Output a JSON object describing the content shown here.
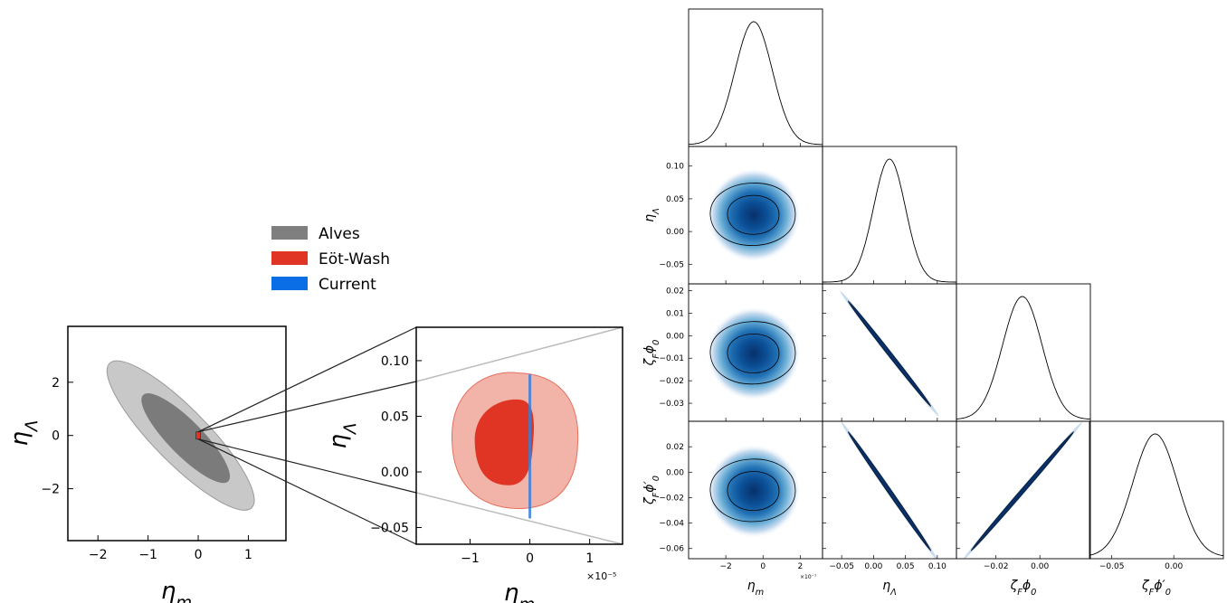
{
  "chart_data": [
    {
      "type": "contour",
      "panel": "main",
      "xlabel": "ηm",
      "ylabel": "ηΛ",
      "xlim": [
        -2.6,
        1.75
      ],
      "ylim": [
        -3.95,
        4.1
      ],
      "xticks": [
        -2,
        -1,
        0,
        1
      ],
      "yticks": [
        -2,
        0,
        2
      ],
      "xtick_labels": [
        "−2",
        "−1",
        "0",
        "1"
      ],
      "ytick_labels": [
        "−2",
        "0",
        "2"
      ],
      "contours": [
        {
          "name": "Alves",
          "level": "outer",
          "color": "#c8c8c8",
          "center": [
            -0.4,
            0.4
          ],
          "extent_x": [
            -1.5,
            1.3
          ],
          "extent_y": [
            -2.7,
            2.6
          ]
        },
        {
          "name": "Alves",
          "level": "inner",
          "color": "#7b7b7b",
          "center": [
            -0.3,
            0.3
          ],
          "extent_x": [
            -0.9,
            0.8
          ],
          "extent_y": [
            -1.7,
            1.5
          ]
        }
      ]
    },
    {
      "type": "contour",
      "panel": "zoom",
      "xlabel": "ηm",
      "ylabel": "ηΛ",
      "x_scale_label": "×10⁻⁵",
      "xlim": [
        -1.9,
        1.55
      ],
      "ylim": [
        -0.065,
        0.13
      ],
      "xticks": [
        -1,
        0,
        1
      ],
      "yticks": [
        -0.05,
        0.0,
        0.05,
        0.1
      ],
      "xtick_labels": [
        "−1",
        "0",
        "1"
      ],
      "ytick_labels": [
        "−0.05",
        "0.00",
        "0.05",
        "0.10"
      ],
      "contours": [
        {
          "name": "Eöt-Wash",
          "level": "outer",
          "color": "#f2b3a8",
          "extent_x": [
            -1.35,
            0.8
          ],
          "extent_y": [
            -0.03,
            0.09
          ]
        },
        {
          "name": "Eöt-Wash",
          "level": "inner",
          "color": "#e03424",
          "extent_x": [
            -0.9,
            0.0
          ],
          "extent_y": [
            -0.012,
            0.065
          ]
        },
        {
          "name": "Current",
          "level": "band",
          "color": "#3a7fd8",
          "x": 0.0,
          "extent_y": [
            -0.042,
            0.088
          ]
        }
      ]
    },
    {
      "type": "corner",
      "parameters": [
        "ηm",
        "ηΛ",
        "ζFϕ0",
        "ζFϕ′0"
      ],
      "offset_label": "×10⁻⁷",
      "means": [
        -0.5,
        0.025,
        -0.008,
        -0.015
      ],
      "sigmas": [
        1.0,
        0.025,
        0.009,
        0.018
      ],
      "correlations": [
        [
          "eta_Lambda",
          "zetaF_phi0",
          -0.998
        ],
        [
          "eta_Lambda",
          "zetaF_phi0prime",
          -0.998
        ],
        [
          "zetaF_phi0",
          "zetaF_phi0prime",
          0.998
        ]
      ],
      "axes": {
        "eta_m": {
          "label": "ηm",
          "lim": [
            -4.0,
            3.2
          ],
          "ticks": [
            -2,
            0,
            2
          ],
          "tick_labels": [
            "−2",
            "0",
            "2"
          ]
        },
        "eta_Lambda": {
          "label": "ηΛ",
          "lim": [
            -0.08,
            0.13
          ],
          "ticks": [
            -0.05,
            0.0,
            0.05,
            0.1
          ],
          "tick_labels": [
            "−0.05",
            "0.00",
            "0.05",
            "0.10"
          ]
        },
        "zetaF_phi0": {
          "label": "ζFϕ0",
          "lim": [
            -0.038,
            0.023
          ],
          "ticks": [
            -0.03,
            -0.02,
            -0.01,
            0.0,
            0.01,
            0.02
          ],
          "tick_labels": [
            "−0.03",
            "−0.02",
            "−0.01",
            "0.00",
            "0.01",
            "0.02"
          ],
          "xticks": [
            -0.02,
            0.0
          ],
          "xtick_labels": [
            "−0.02",
            "0.00"
          ]
        },
        "zetaF_phi0prime": {
          "label": "ζFϕ′0",
          "lim": [
            -0.068,
            0.04
          ],
          "ticks": [
            -0.06,
            -0.04,
            -0.02,
            0.0,
            0.02
          ],
          "tick_labels": [
            "−0.06",
            "−0.04",
            "−0.02",
            "0.00",
            "0.02"
          ],
          "xticks": [
            -0.05,
            0.0
          ],
          "xtick_labels": [
            "−0.05",
            "0.00"
          ]
        }
      },
      "colormap": "Blues"
    }
  ],
  "legend": {
    "placement": "top-center",
    "entries": [
      {
        "label": "Alves",
        "color": "#7f7f7f"
      },
      {
        "label": "Eöt-Wash",
        "color": "#e03424"
      },
      {
        "label": "Current",
        "color": "#0a6ee6"
      }
    ]
  }
}
